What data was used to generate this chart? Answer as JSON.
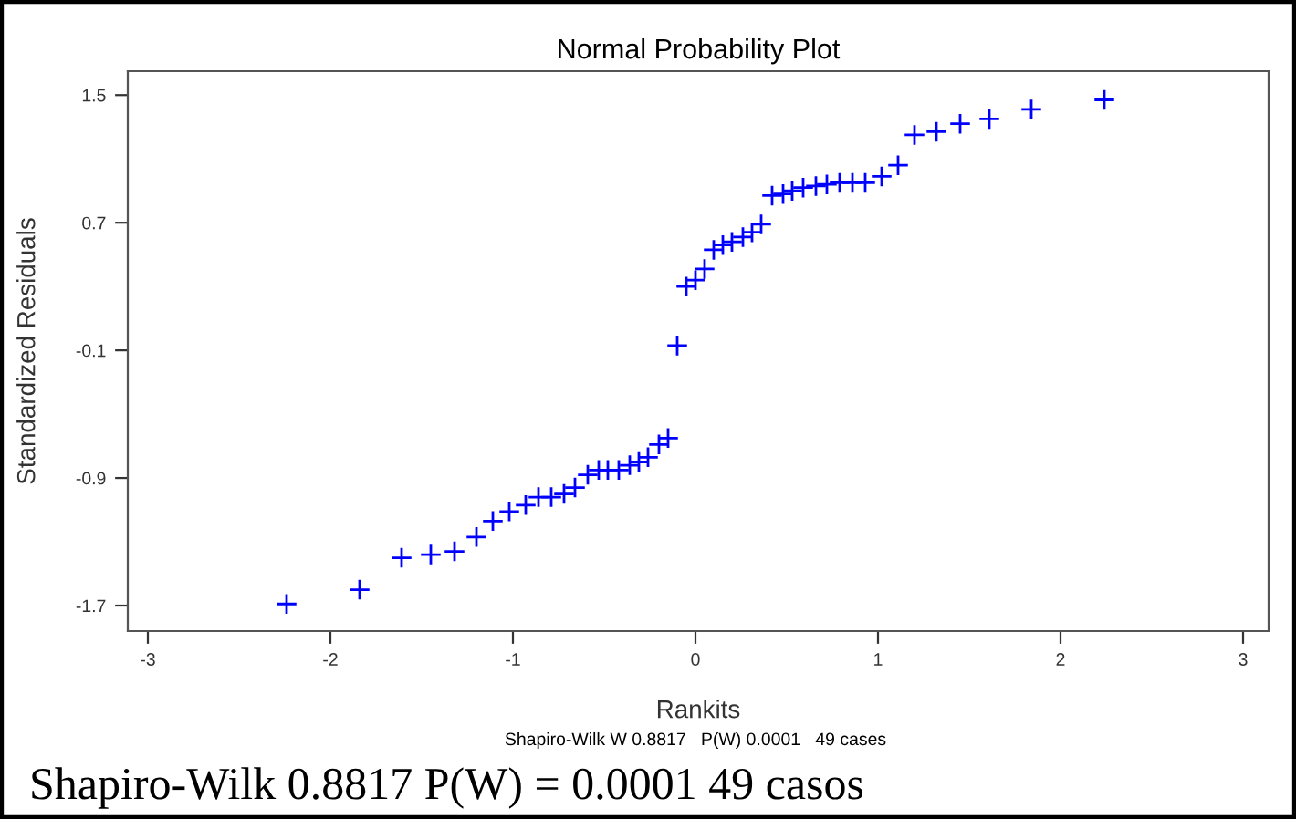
{
  "chart_data": {
    "type": "scatter",
    "title": "Normal Probability Plot",
    "xlabel": "Rankits",
    "ylabel": "Standardized Residuals",
    "annotations": [
      "Shapiro-Wilk W 0.8817   P(W) 0.0001   49 cases",
      "Shapiro-Wilk 0.8817 P(W) = 0.0001 49 casos"
    ],
    "x": [
      -2.24,
      -1.84,
      -1.61,
      -1.45,
      -1.32,
      -1.2,
      -1.11,
      -1.02,
      -0.93,
      -0.86,
      -0.79,
      -0.72,
      -0.66,
      -0.59,
      -0.53,
      -0.48,
      -0.42,
      -0.36,
      -0.31,
      -0.26,
      -0.2,
      -0.15,
      -0.1,
      -0.05,
      0,
      0.05,
      0.1,
      0.15,
      0.2,
      0.26,
      0.31,
      0.36,
      0.42,
      0.48,
      0.53,
      0.59,
      0.66,
      0.72,
      0.79,
      0.86,
      0.93,
      1.02,
      1.11,
      1.2,
      1.32,
      1.45,
      1.61,
      1.84,
      2.24
    ],
    "values": [
      -1.69,
      -1.6,
      -1.4,
      -1.38,
      -1.36,
      -1.27,
      -1.17,
      -1.11,
      -1.07,
      -1.02,
      -1.02,
      -1,
      -0.96,
      -0.88,
      -0.85,
      -0.85,
      -0.85,
      -0.82,
      -0.8,
      -0.77,
      -0.69,
      -0.65,
      -0.07,
      0.3,
      0.34,
      0.41,
      0.53,
      0.56,
      0.58,
      0.61,
      0.64,
      0.69,
      0.87,
      0.88,
      0.9,
      0.92,
      0.93,
      0.94,
      0.95,
      0.95,
      0.95,
      0.99,
      1.06,
      1.25,
      1.27,
      1.32,
      1.35,
      1.41,
      1.47
    ],
    "color": "#0000ff",
    "marker": "cross",
    "xlim": [
      -3.11,
      3.14
    ],
    "xticks": [
      -3,
      -2,
      -1,
      0,
      1,
      2,
      3
    ],
    "ylim": [
      -1.86,
      1.65
    ],
    "yticks": [
      -1.7,
      -0.9,
      -0.1,
      0.7,
      1.5
    ],
    "grid": false
  }
}
